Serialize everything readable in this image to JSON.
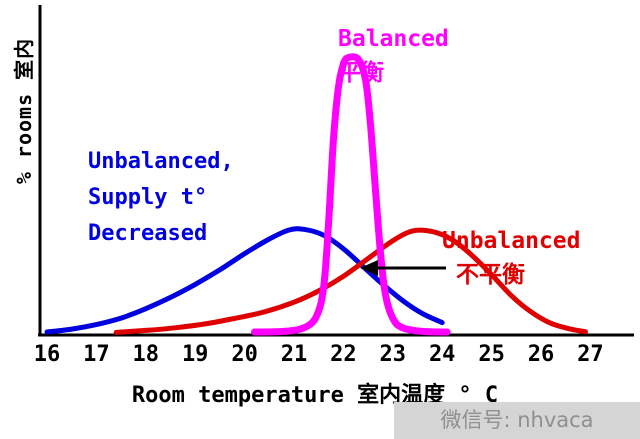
{
  "window": {
    "background": "#ffffff"
  },
  "watermark": {
    "text": "微信号: nhvaca",
    "bg": "#d5d5d5",
    "fg": "#8f8f8f"
  },
  "chart_data": {
    "type": "line",
    "title": "",
    "xlabel": "Room temperature 室内温度 ° C",
    "ylabel": "% rooms 室内",
    "x_ticks": [
      16,
      17,
      18,
      19,
      20,
      21,
      22,
      23,
      24,
      25,
      26,
      27
    ],
    "xlim": [
      15.8,
      27.9
    ],
    "ylim": [
      0,
      100
    ],
    "grid": false,
    "legend_position": "none (inline colored annotations)",
    "series": [
      {
        "id": "unbalanced-supply-decreased",
        "name": "Unbalanced, Supply t° Decreased",
        "color": "#0000e0",
        "stroke_width": 5,
        "points": [
          [
            16,
            0.3
          ],
          [
            16.5,
            1.2
          ],
          [
            17,
            2.6
          ],
          [
            17.5,
            4.6
          ],
          [
            18,
            7.5
          ],
          [
            18.5,
            11
          ],
          [
            19,
            15
          ],
          [
            19.5,
            19.5
          ],
          [
            20,
            24.5
          ],
          [
            20.5,
            29
          ],
          [
            20.9,
            31.8
          ],
          [
            21.2,
            32
          ],
          [
            21.6,
            30.2
          ],
          [
            22,
            26
          ],
          [
            22.4,
            20.5
          ],
          [
            22.8,
            15
          ],
          [
            23.2,
            10
          ],
          [
            23.6,
            6
          ],
          [
            24,
            3.2
          ]
        ]
      },
      {
        "id": "unbalanced",
        "name": "Unbalanced 不平衡",
        "color": "#e00000",
        "stroke_width": 5,
        "points": [
          [
            17.4,
            0.2
          ],
          [
            18,
            0.8
          ],
          [
            18.6,
            1.6
          ],
          [
            19.2,
            2.8
          ],
          [
            19.8,
            4.5
          ],
          [
            20.4,
            6.5
          ],
          [
            21,
            9.5
          ],
          [
            21.5,
            13
          ],
          [
            22,
            17.5
          ],
          [
            22.5,
            23
          ],
          [
            23,
            28.5
          ],
          [
            23.4,
            31.5
          ],
          [
            23.8,
            31.3
          ],
          [
            24.2,
            28.8
          ],
          [
            24.6,
            24
          ],
          [
            25,
            18
          ],
          [
            25.4,
            11.5
          ],
          [
            25.8,
            6.5
          ],
          [
            26.2,
            3
          ],
          [
            26.6,
            1.2
          ],
          [
            26.9,
            0.4
          ]
        ]
      },
      {
        "id": "balanced",
        "name": "Balanced 平衡",
        "color": "#ff00ff",
        "stroke_width": 7,
        "points": [
          [
            20.2,
            0.3
          ],
          [
            20.8,
            0.5
          ],
          [
            21.2,
            1.6
          ],
          [
            21.45,
            5
          ],
          [
            21.6,
            14
          ],
          [
            21.7,
            34
          ],
          [
            21.8,
            60
          ],
          [
            21.9,
            76
          ],
          [
            22,
            83
          ],
          [
            22.1,
            85
          ],
          [
            22.3,
            84.5
          ],
          [
            22.45,
            78
          ],
          [
            22.55,
            64
          ],
          [
            22.65,
            44
          ],
          [
            22.75,
            25
          ],
          [
            22.85,
            12
          ],
          [
            23,
            4.5
          ],
          [
            23.2,
            1.6
          ],
          [
            23.6,
            0.5
          ],
          [
            24.1,
            0.3
          ]
        ]
      }
    ],
    "annotations": [
      {
        "id": "balanced",
        "color": "#ff00ff",
        "lines": [
          "Balanced",
          "平衡"
        ]
      },
      {
        "id": "unbalanced-supply-decreased",
        "color": "#0000e0",
        "lines": [
          "Unbalanced,",
          "Supply t°",
          "Decreased"
        ]
      },
      {
        "id": "unbalanced",
        "color": "#e00000",
        "lines": [
          "Unbalanced",
          "不平衡"
        ],
        "arrow": "black arrow pointing left from label toward curve crossing near 22.3°C"
      }
    ]
  }
}
